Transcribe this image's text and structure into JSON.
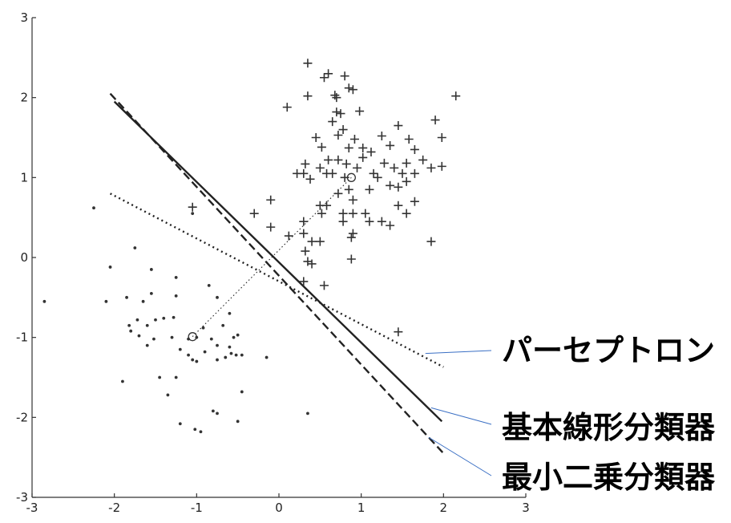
{
  "chart_data": {
    "type": "scatter",
    "xlim": [
      -3,
      3
    ],
    "ylim": [
      -3,
      3
    ],
    "xticks": [
      "-3",
      "-2",
      "-1",
      "0",
      "1",
      "2",
      "3"
    ],
    "yticks": [
      "-3",
      "-2",
      "-1",
      "0",
      "1",
      "2",
      "3"
    ],
    "grid": false,
    "series": [
      {
        "marker": "plus",
        "points": [
          [
            0.35,
            2.43
          ],
          [
            0.6,
            2.3
          ],
          [
            0.8,
            2.27
          ],
          [
            0.55,
            2.25
          ],
          [
            0.85,
            2.12
          ],
          [
            0.9,
            2.1
          ],
          [
            0.68,
            2.03
          ],
          [
            0.35,
            2.02
          ],
          [
            0.7,
            2.0
          ],
          [
            2.15,
            2.02
          ],
          [
            0.1,
            1.88
          ],
          [
            0.98,
            1.83
          ],
          [
            0.75,
            1.8
          ],
          [
            0.7,
            1.82
          ],
          [
            0.65,
            1.7
          ],
          [
            1.9,
            1.72
          ],
          [
            1.45,
            1.65
          ],
          [
            0.78,
            1.6
          ],
          [
            0.72,
            1.53
          ],
          [
            0.45,
            1.5
          ],
          [
            0.92,
            1.48
          ],
          [
            1.25,
            1.52
          ],
          [
            1.58,
            1.48
          ],
          [
            1.98,
            1.5
          ],
          [
            1.35,
            1.4
          ],
          [
            0.52,
            1.38
          ],
          [
            0.85,
            1.37
          ],
          [
            1.02,
            1.37
          ],
          [
            1.12,
            1.32
          ],
          [
            1.65,
            1.35
          ],
          [
            1.02,
            1.25
          ],
          [
            0.6,
            1.22
          ],
          [
            0.72,
            1.22
          ],
          [
            0.82,
            1.17
          ],
          [
            1.28,
            1.18
          ],
          [
            1.55,
            1.18
          ],
          [
            1.75,
            1.22
          ],
          [
            0.32,
            1.17
          ],
          [
            0.5,
            1.12
          ],
          [
            0.95,
            1.12
          ],
          [
            1.4,
            1.12
          ],
          [
            1.85,
            1.12
          ],
          [
            1.98,
            1.14
          ],
          [
            0.22,
            1.05
          ],
          [
            0.3,
            1.05
          ],
          [
            0.58,
            1.05
          ],
          [
            0.65,
            1.05
          ],
          [
            1.15,
            1.05
          ],
          [
            1.5,
            1.05
          ],
          [
            1.65,
            1.05
          ],
          [
            0.38,
            0.98
          ],
          [
            0.8,
            1.0
          ],
          [
            1.2,
            1.0
          ],
          [
            1.55,
            0.95
          ],
          [
            1.35,
            0.9
          ],
          [
            1.45,
            0.88
          ],
          [
            0.85,
            0.85
          ],
          [
            0.72,
            0.8
          ],
          [
            1.1,
            0.85
          ],
          [
            -1.05,
            0.63
          ],
          [
            -0.1,
            0.72
          ],
          [
            0.9,
            0.72
          ],
          [
            1.65,
            0.7
          ],
          [
            0.5,
            0.65
          ],
          [
            0.58,
            0.65
          ],
          [
            1.45,
            0.65
          ],
          [
            0.78,
            0.55
          ],
          [
            0.52,
            0.55
          ],
          [
            1.55,
            0.55
          ],
          [
            -0.3,
            0.55
          ],
          [
            0.9,
            0.55
          ],
          [
            1.05,
            0.55
          ],
          [
            0.3,
            0.45
          ],
          [
            0.78,
            0.45
          ],
          [
            1.1,
            0.45
          ],
          [
            1.25,
            0.45
          ],
          [
            1.35,
            0.4
          ],
          [
            -0.1,
            0.38
          ],
          [
            0.3,
            0.3
          ],
          [
            0.9,
            0.3
          ],
          [
            0.12,
            0.27
          ],
          [
            0.4,
            0.2
          ],
          [
            0.5,
            0.2
          ],
          [
            0.88,
            0.25
          ],
          [
            1.85,
            0.2
          ],
          [
            0.32,
            0.08
          ],
          [
            0.88,
            -0.02
          ],
          [
            0.35,
            -0.05
          ],
          [
            0.4,
            -0.08
          ],
          [
            0.55,
            -0.35
          ],
          [
            0.3,
            -0.3
          ],
          [
            1.45,
            -0.93
          ]
        ]
      },
      {
        "marker": "dot",
        "points": [
          [
            -2.25,
            0.62
          ],
          [
            -1.05,
            0.55
          ],
          [
            -2.05,
            -0.12
          ],
          [
            -1.75,
            0.12
          ],
          [
            -1.55,
            -0.15
          ],
          [
            -1.25,
            -0.25
          ],
          [
            -1.55,
            -0.45
          ],
          [
            -0.85,
            -0.35
          ],
          [
            -1.85,
            -0.5
          ],
          [
            -1.65,
            -0.55
          ],
          [
            -2.1,
            -0.55
          ],
          [
            -2.85,
            -0.55
          ],
          [
            -1.25,
            -0.48
          ],
          [
            -0.75,
            -0.5
          ],
          [
            -1.72,
            -0.78
          ],
          [
            -1.6,
            -0.85
          ],
          [
            -1.82,
            -0.85
          ],
          [
            -1.5,
            -0.78
          ],
          [
            -1.4,
            -0.76
          ],
          [
            -1.28,
            -0.75
          ],
          [
            -0.92,
            -0.88
          ],
          [
            -1.8,
            -0.92
          ],
          [
            -1.7,
            -0.98
          ],
          [
            -1.52,
            -1.02
          ],
          [
            -1.3,
            -1.0
          ],
          [
            -0.6,
            -0.7
          ],
          [
            -0.68,
            -0.85
          ],
          [
            -1.1,
            -1.02
          ],
          [
            -0.82,
            -1.02
          ],
          [
            -0.55,
            -1.0
          ],
          [
            -0.5,
            -0.97
          ],
          [
            -1.6,
            -1.1
          ],
          [
            -1.2,
            -1.15
          ],
          [
            -0.75,
            -1.1
          ],
          [
            -0.6,
            -1.12
          ],
          [
            -0.9,
            -1.18
          ],
          [
            -1.1,
            -1.22
          ],
          [
            -0.58,
            -1.2
          ],
          [
            -0.45,
            -1.22
          ],
          [
            -0.52,
            -1.22
          ],
          [
            -0.65,
            -1.25
          ],
          [
            -0.75,
            -1.28
          ],
          [
            -1.05,
            -1.28
          ],
          [
            -1.0,
            -1.3
          ],
          [
            -0.15,
            -1.25
          ],
          [
            -1.45,
            -1.5
          ],
          [
            -1.25,
            -1.5
          ],
          [
            -1.9,
            -1.55
          ],
          [
            -0.45,
            -1.68
          ],
          [
            -1.35,
            -1.72
          ],
          [
            -0.8,
            -1.92
          ],
          [
            -0.75,
            -1.95
          ],
          [
            -0.5,
            -2.05
          ],
          [
            -1.2,
            -2.08
          ],
          [
            -1.02,
            -2.15
          ],
          [
            -0.95,
            -2.18
          ],
          [
            0.35,
            -1.95
          ],
          [
            -1.0,
            -1.0
          ]
        ]
      }
    ],
    "means": [
      [
        0.88,
        1.0
      ],
      [
        -1.05,
        -0.99
      ]
    ],
    "lines": [
      {
        "style": "solid",
        "from": [
          -2.0,
          1.95
        ],
        "to": [
          1.98,
          -2.05
        ]
      },
      {
        "style": "dashed",
        "from": [
          -2.05,
          2.05
        ],
        "to": [
          2.0,
          -2.45
        ]
      },
      {
        "style": "dotted",
        "from": [
          -2.05,
          0.8
        ],
        "to": [
          2.0,
          -1.37
        ]
      },
      {
        "style": "dotted-thin",
        "from": [
          -1.05,
          -0.99
        ],
        "to": [
          0.88,
          1.0
        ]
      }
    ],
    "annotations": [
      {
        "text": "パーセプトロン",
        "target": [
          1.78,
          -1.2
        ]
      },
      {
        "text": "基本線形分類器",
        "target": [
          1.85,
          -1.88
        ]
      },
      {
        "text": "最小二乗分類器",
        "target": [
          1.82,
          -2.25
        ]
      }
    ]
  }
}
